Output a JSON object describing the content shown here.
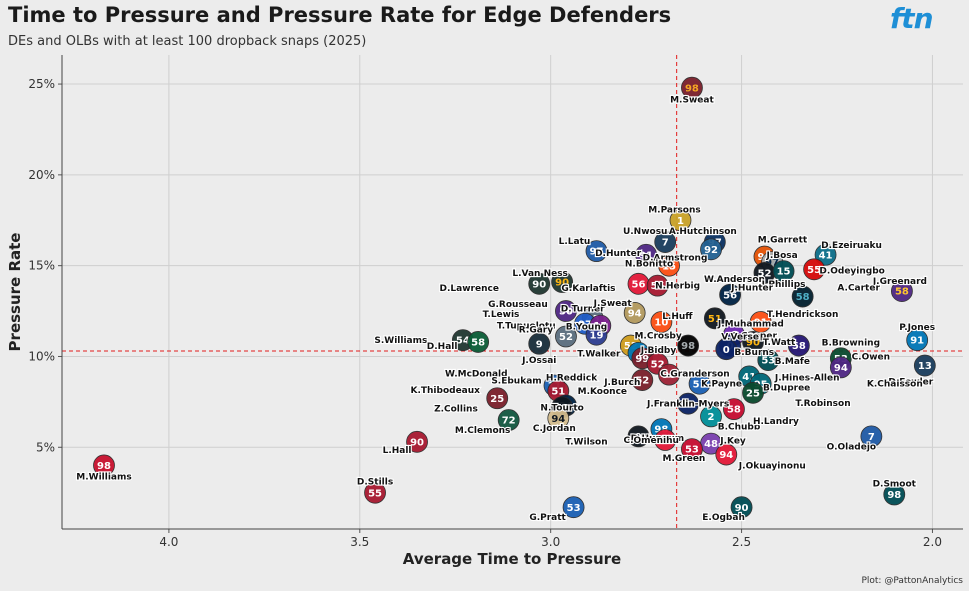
{
  "header": {
    "title": "Time to Pressure and Pressure Rate for Edge Defenders",
    "subtitle": "DEs and OLBs with at least 100 dropback snaps (2025)",
    "brand": "ftn",
    "credit": "Plot: @PattonAnalytics"
  },
  "chart_data": {
    "type": "scatter",
    "title": "Time to Pressure and Pressure Rate for Edge Defenders",
    "subtitle": "DEs and OLBs with at least 100 dropback snaps (2025)",
    "xlabel": "Average Time to Pressure",
    "ylabel": "Pressure Rate",
    "x_reversed": true,
    "xlim": [
      4.28,
      1.92
    ],
    "ylim": [
      0.5,
      26.6
    ],
    "x_ticks": [
      4.0,
      3.5,
      3.0,
      2.5,
      2.0
    ],
    "x_tick_labels": [
      "4.0",
      "3.5",
      "3.0",
      "2.5",
      "2.0"
    ],
    "y_ticks": [
      5,
      10,
      15,
      20,
      25
    ],
    "y_tick_labels": [
      "5%",
      "10%",
      "15%",
      "20%",
      "25%"
    ],
    "avg_x": 2.67,
    "avg_y": 10.3,
    "points": [
      {
        "name": "M.Sweat",
        "x": 2.63,
        "y": 24.8,
        "num": "98",
        "color": "#7a1f2b",
        "tc": "#f5a623",
        "lx": 0,
        "ly": 12
      },
      {
        "name": "M.Parsons",
        "x": 2.66,
        "y": 17.5,
        "num": "1",
        "color": "#c9a227",
        "tc": "#ffffff",
        "lx": -6,
        "ly": -11
      },
      {
        "name": "U.Nwosu",
        "x": 2.7,
        "y": 16.3,
        "num": "7",
        "color": "#1a3d5c",
        "tc": "#ffffff",
        "lx": -20,
        "ly": -11
      },
      {
        "name": "A.Hutchinson",
        "x": 2.57,
        "y": 16.3,
        "num": "97",
        "color": "#0a3161",
        "tc": "#ffffff",
        "lx": -12,
        "ly": -11
      },
      {
        "name": "M.Garrett",
        "x": 2.44,
        "y": 15.5,
        "num": "95",
        "color": "#e35205",
        "tc": "#ffffff",
        "lx": 18,
        "ly": -17
      },
      {
        "name": "J.Bosa",
        "x": 2.42,
        "y": 15.2,
        "num": "97",
        "color": "#a5acaf",
        "tc": "#002244",
        "lx": 10,
        "ly": -7
      },
      {
        "name": "D.Ezeiruaku",
        "x": 2.28,
        "y": 15.6,
        "num": "41",
        "color": "#0b6e8a",
        "tc": "#ffffff",
        "lx": 26,
        "ly": -10
      },
      {
        "name": "D.Odeyingbo",
        "x": 2.31,
        "y": 14.8,
        "num": "55",
        "color": "#d50a0a",
        "tc": "#ffffff",
        "lx": 38,
        "ly": 1
      },
      {
        "name": "L.Latu",
        "x": 2.88,
        "y": 15.8,
        "num": "97",
        "color": "#1f5aa6",
        "tc": "#ffffff",
        "lx": -22,
        "ly": -10
      },
      {
        "name": "D.Hunter",
        "x": 2.75,
        "y": 15.6,
        "num": "91",
        "color": "#4f2683",
        "tc": "#ffffff",
        "lx": -28,
        "ly": -2
      },
      {
        "name": "D.Armstrong",
        "x": 2.58,
        "y": 15.9,
        "num": "92",
        "color": "#236192",
        "tc": "#ffffff",
        "lx": -36,
        "ly": 8
      },
      {
        "name": "N.Bonitto",
        "x": 2.69,
        "y": 15.0,
        "num": "15",
        "color": "#fb4f14",
        "tc": "#ffffff",
        "lx": -20,
        "ly": -2
      },
      {
        "name": "W.Anderson",
        "x": 2.44,
        "y": 14.6,
        "num": "52",
        "color": "#101820",
        "tc": "#ffffff",
        "lx": -30,
        "ly": 6
      },
      {
        "name": "J.Phillips",
        "x": 2.39,
        "y": 14.7,
        "num": "15",
        "color": "#004c54",
        "tc": "#ffffff",
        "lx": 0,
        "ly": 13
      },
      {
        "name": "L.Van Ness",
        "x": 2.97,
        "y": 14.1,
        "num": "90",
        "color": "#203731",
        "tc": "#ffb612",
        "lx": -22,
        "ly": -9
      },
      {
        "name": "D.Lawrence",
        "x": 3.03,
        "y": 14.0,
        "num": "90",
        "color": "#203731",
        "tc": "#ffffff",
        "lx": -70,
        "ly": 4
      },
      {
        "name": "G.Karlaftis",
        "x": 2.77,
        "y": 14.0,
        "num": "56",
        "color": "#e31837",
        "tc": "#ffffff",
        "lx": -50,
        "ly": 4
      },
      {
        "name": "N.Herbig",
        "x": 2.72,
        "y": 13.9,
        "num": "55",
        "color": "#a71930",
        "tc": "#ffffff",
        "lx": 20,
        "ly": 0
      },
      {
        "name": "J.Greenard",
        "x": 2.08,
        "y": 13.6,
        "num": "58",
        "color": "#4f2683",
        "tc": "#ffc62f",
        "lx": -2,
        "ly": -10
      },
      {
        "name": "J.Hunter",
        "x": 2.53,
        "y": 13.4,
        "num": "56",
        "color": "#002244",
        "tc": "#ffffff",
        "lx": 22,
        "ly": -7
      },
      {
        "name": "A.Carter",
        "x": 2.34,
        "y": 13.3,
        "num": "58",
        "color": "#03202f",
        "tc": "#4fb0c6",
        "lx": 56,
        "ly": -9
      },
      {
        "name": "G.Rousseau",
        "x": 2.96,
        "y": 12.5,
        "num": "50",
        "color": "#4f2683",
        "tc": "#ffffff",
        "lx": -48,
        "ly": -7
      },
      {
        "name": "D.Turner",
        "x": 2.89,
        "y": 12.1,
        "num": "45",
        "color": "#5a6d7e",
        "tc": "#ffffff",
        "lx": -10,
        "ly": -10
      },
      {
        "name": "J.Sweat",
        "x": 2.78,
        "y": 12.4,
        "num": "94",
        "color": "#b3995d",
        "tc": "#ffffff",
        "lx": -22,
        "ly": -10
      },
      {
        "name": "T.Lewis",
        "x": 2.91,
        "y": 11.8,
        "num": "97",
        "color": "#1e5bc6",
        "tc": "#ffffff",
        "lx": -84,
        "ly": -10
      },
      {
        "name": "T.Tupuolotu",
        "x": 2.87,
        "y": 11.7,
        "num": "15",
        "color": "#7a1f8c",
        "tc": "#ffffff",
        "lx": -74,
        "ly": 0
      },
      {
        "name": "L.Huff",
        "x": 2.71,
        "y": 11.9,
        "num": "10",
        "color": "#fb4f14",
        "tc": "#ffffff",
        "lx": 16,
        "ly": -6
      },
      {
        "name": "J.Muhammad",
        "x": 2.57,
        "y": 12.1,
        "num": "51",
        "color": "#101820",
        "tc": "#ffb612",
        "lx": 36,
        "ly": 5
      },
      {
        "name": "T.Hendrickson",
        "x": 2.45,
        "y": 11.9,
        "num": "91",
        "color": "#fb4f14",
        "tc": "#ffffff",
        "lx": 42,
        "ly": -8
      },
      {
        "name": "P.Jones",
        "x": 2.04,
        "y": 10.9,
        "num": "91",
        "color": "#0076b6",
        "tc": "#ffffff",
        "lx": 0,
        "ly": -13
      },
      {
        "name": "S.Williams",
        "x": 3.23,
        "y": 10.9,
        "num": "54",
        "color": "#203731",
        "tc": "#ffffff",
        "lx": -62,
        "ly": 0
      },
      {
        "name": "R.Gary",
        "x": 2.96,
        "y": 11.1,
        "num": "52",
        "color": "#5a6d7e",
        "tc": "#ffffff",
        "lx": -30,
        "ly": -7
      },
      {
        "name": "B.Young",
        "x": 2.88,
        "y": 11.2,
        "num": "19",
        "color": "#2d3e91",
        "tc": "#ffffff",
        "lx": -10,
        "ly": -8
      },
      {
        "name": "C.Cooper",
        "x": 2.52,
        "y": 11.2,
        "num": "8",
        "color": "#6d28b0",
        "tc": "#ffffff",
        "lx": 20,
        "ly": 1
      },
      {
        "name": "T.Watt",
        "x": 2.47,
        "y": 10.8,
        "num": "90",
        "color": "#101820",
        "tc": "#ffb612",
        "lx": 26,
        "ly": 0
      },
      {
        "name": "B.Browning",
        "x": 2.35,
        "y": 10.6,
        "num": "58",
        "color": "#241773",
        "tc": "#ffffff",
        "lx": 52,
        "ly": -3
      },
      {
        "name": "M.Crosby",
        "x": 2.64,
        "y": 10.6,
        "num": "98",
        "color": "#000000",
        "tc": "#a5acaf",
        "lx": -30,
        "ly": -10
      },
      {
        "name": "V.Verse",
        "x": 2.53,
        "y": 10.6,
        "num": "0",
        "color": "#0b2265",
        "tc": "#ffffff",
        "lx": 10,
        "ly": -9
      },
      {
        "name": "D.Hall",
        "x": 3.19,
        "y": 10.8,
        "num": "58",
        "color": "#0a5c36",
        "tc": "#ffffff",
        "lx": -36,
        "ly": 4
      },
      {
        "name": "J.Ossai",
        "x": 3.03,
        "y": 10.7,
        "num": "9",
        "color": "#1a2e3b",
        "tc": "#ffffff",
        "lx": 0,
        "ly": 16
      },
      {
        "name": "T.Walker",
        "x": 2.79,
        "y": 10.6,
        "num": "52",
        "color": "#ce9c1d",
        "tc": "#ffffff",
        "lx": -32,
        "ly": 8
      },
      {
        "name": "J.Bidby",
        "x": 2.77,
        "y": 10.2,
        "num": "0",
        "color": "#0076b6",
        "tc": "#ffffff",
        "lx": 20,
        "ly": -3
      },
      {
        "name": "B.Burns",
        "x": 2.54,
        "y": 10.4,
        "num": "0",
        "color": "#0b2265",
        "tc": "#ffffff",
        "lx": 28,
        "ly": 3
      },
      {
        "name": "C.Owen",
        "x": 2.24,
        "y": 9.9,
        "num": "53",
        "color": "#0a4a2e",
        "tc": "#ffffff",
        "lx": 30,
        "ly": -2
      },
      {
        "name": "B.Mafe",
        "x": 2.43,
        "y": 9.8,
        "num": "53",
        "color": "#004c54",
        "tc": "#ffffff",
        "lx": 24,
        "ly": 1
      },
      {
        "name": "D.Fowler",
        "x": 2.02,
        "y": 9.5,
        "num": "13",
        "color": "#1a3d5c",
        "tc": "#ffffff",
        "lx": -14,
        "ly": 16
      },
      {
        "name": "W.McDonald",
        "x": 2.76,
        "y": 9.9,
        "num": "99",
        "color": "#7a1f2b",
        "tc": "#ffffff",
        "lx": -166,
        "ly": 15
      },
      {
        "name": "H.Reddick",
        "x": 2.72,
        "y": 9.6,
        "num": "52",
        "color": "#a71930",
        "tc": "#ffffff",
        "lx": -86,
        "ly": 14
      },
      {
        "name": "C.Granderson",
        "x": 2.69,
        "y": 9.0,
        "num": "96",
        "color": "#9d2235",
        "tc": "#ffffff",
        "lx": 26,
        "ly": -1
      },
      {
        "name": "J.Hines-Allen",
        "x": 2.48,
        "y": 8.9,
        "num": "41",
        "color": "#006778",
        "tc": "#ffffff",
        "lx": 58,
        "ly": 1
      },
      {
        "name": "J.Burch",
        "x": 2.76,
        "y": 8.7,
        "num": "52",
        "color": "#7a1f2b",
        "tc": "#ffffff",
        "lx": -20,
        "ly": 2
      },
      {
        "name": "K.Payne",
        "x": 2.61,
        "y": 8.5,
        "num": "51",
        "color": "#1a5fb4",
        "tc": "#ffffff",
        "lx": 22,
        "ly": 0
      },
      {
        "name": "K.Chaisson",
        "x": 2.24,
        "y": 9.4,
        "num": "94",
        "color": "#4f2683",
        "tc": "#ffffff",
        "lx": 54,
        "ly": 16
      },
      {
        "name": "S.Ebukam",
        "x": 2.99,
        "y": 8.4,
        "num": "11",
        "color": "#1a5fb4",
        "tc": "#ffffff",
        "lx": -38,
        "ly": -5
      },
      {
        "name": "M.Koonce",
        "x": 2.98,
        "y": 8.1,
        "num": "51",
        "color": "#a71930",
        "tc": "#ffffff",
        "lx": 44,
        "ly": 0
      },
      {
        "name": "K.Thibodeaux",
        "x": 3.14,
        "y": 7.7,
        "num": "25",
        "color": "#7a1f2b",
        "tc": "#ffffff",
        "lx": -52,
        "ly": -8
      },
      {
        "name": "B.Dupree",
        "x": 2.45,
        "y": 8.5,
        "num": "95",
        "color": "#006778",
        "tc": "#ffffff",
        "lx": 26,
        "ly": 4
      },
      {
        "name": "T.Robinson",
        "x": 2.47,
        "y": 8.0,
        "num": "25",
        "color": "#0a4a2e",
        "tc": "#ffffff",
        "lx": 70,
        "ly": 10
      },
      {
        "name": "J.Franklin-Myers",
        "x": 2.64,
        "y": 7.4,
        "num": "96",
        "color": "#0b2265",
        "tc": "#ffffff",
        "lx": 0,
        "ly": 0
      },
      {
        "name": "Z.Collins",
        "x": 2.96,
        "y": 7.3,
        "num": "94",
        "color": "#002244",
        "tc": "#ffffff",
        "lx": -110,
        "ly": 3
      },
      {
        "name": "N.Tourto",
        "x": 2.97,
        "y": 7.2,
        "num": "51",
        "color": "#101820",
        "tc": "#ffffff",
        "lx": 0,
        "ly": 0
      },
      {
        "name": "M.Clemons",
        "x": 3.11,
        "y": 6.5,
        "num": "72",
        "color": "#125740",
        "tc": "#ffffff",
        "lx": -26,
        "ly": 10
      },
      {
        "name": "C.Jordan",
        "x": 2.98,
        "y": 6.6,
        "num": "94",
        "color": "#d3bc8d",
        "tc": "#101820",
        "lx": -4,
        "ly": 10
      },
      {
        "name": "B.Chubb",
        "x": 2.58,
        "y": 6.7,
        "num": "2",
        "color": "#008e97",
        "tc": "#ffffff",
        "lx": 28,
        "ly": 10
      },
      {
        "name": "H.Landry",
        "x": 2.52,
        "y": 7.1,
        "num": "58",
        "color": "#c60c30",
        "tc": "#ffffff",
        "lx": 42,
        "ly": 12
      },
      {
        "name": "D.Hunnum",
        "x": 2.71,
        "y": 6.0,
        "num": "98",
        "color": "#0076b6",
        "tc": "#ffffff",
        "lx": -4,
        "ly": 9
      },
      {
        "name": "T.Wilson",
        "x": 2.77,
        "y": 5.6,
        "num": "9",
        "color": "#101820",
        "tc": "#ffffff",
        "lx": -52,
        "ly": 5
      },
      {
        "name": "C.Omenihu",
        "x": 2.7,
        "y": 5.4,
        "num": "94",
        "color": "#e31837",
        "tc": "#ffb81c",
        "lx": -14,
        "ly": 0
      },
      {
        "name": "J.Key",
        "x": 2.58,
        "y": 5.2,
        "num": "48",
        "color": "#7a3fae",
        "tc": "#ffffff",
        "lx": 22,
        "ly": -3
      },
      {
        "name": "O.Oladejo",
        "x": 2.16,
        "y": 5.6,
        "num": "7",
        "color": "#1f5aa6",
        "tc": "#ffffff",
        "lx": -20,
        "ly": 10
      },
      {
        "name": "M.Green",
        "x": 2.63,
        "y": 4.9,
        "num": "53",
        "color": "#c60c30",
        "tc": "#ffffff",
        "lx": -8,
        "ly": 9
      },
      {
        "name": "J.Okuayinonu",
        "x": 2.54,
        "y": 4.6,
        "num": "94",
        "color": "#e31837",
        "tc": "#ffffff",
        "lx": 46,
        "ly": 11
      },
      {
        "name": "L.Hall",
        "x": 3.35,
        "y": 5.3,
        "num": "90",
        "color": "#a71930",
        "tc": "#ffffff",
        "lx": -20,
        "ly": 8
      },
      {
        "name": "M.Williams",
        "x": 4.17,
        "y": 4.0,
        "num": "98",
        "color": "#c8102e",
        "tc": "#ffffff",
        "lx": 0,
        "ly": 11
      },
      {
        "name": "D.Stills",
        "x": 3.46,
        "y": 2.5,
        "num": "55",
        "color": "#a71930",
        "tc": "#ffffff",
        "lx": 0,
        "ly": -11
      },
      {
        "name": "G.Pratt",
        "x": 2.94,
        "y": 1.7,
        "num": "53",
        "color": "#1a5fb4",
        "tc": "#ffffff",
        "lx": -26,
        "ly": 10
      },
      {
        "name": "E.Ogbah",
        "x": 2.5,
        "y": 1.7,
        "num": "90",
        "color": "#004c54",
        "tc": "#ffffff",
        "lx": -18,
        "ly": 10
      },
      {
        "name": "D.Smoot",
        "x": 2.1,
        "y": 2.4,
        "num": "98",
        "color": "#004c54",
        "tc": "#ffffff",
        "lx": 0,
        "ly": -11
      }
    ]
  }
}
